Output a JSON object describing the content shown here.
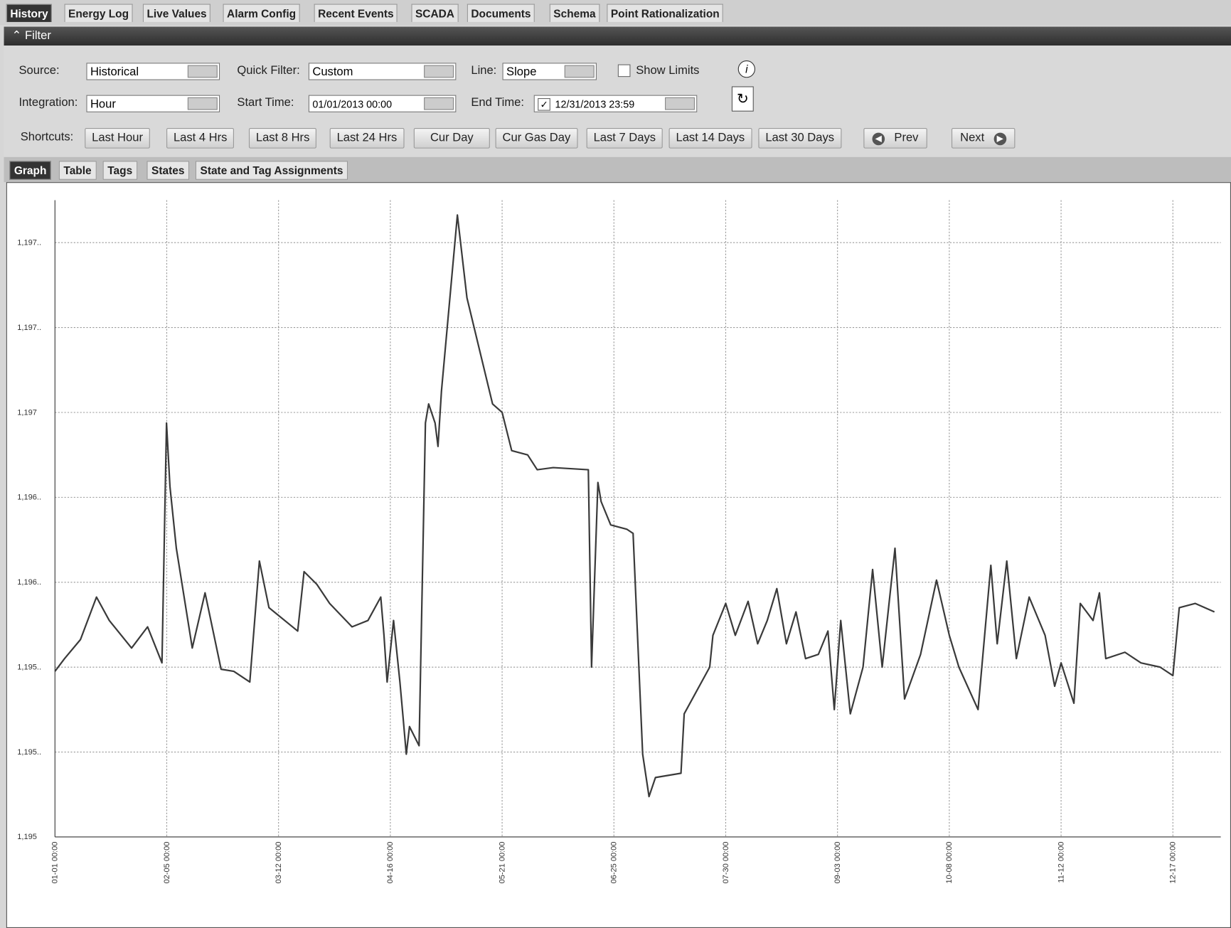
{
  "tabs": [
    "History",
    "Energy Log",
    "Live Values",
    "Alarm Config",
    "Recent Events",
    "SCADA",
    "Documents",
    "Schema",
    "Point Rationalization"
  ],
  "filter": {
    "title": "Filter",
    "source_label": "Source:",
    "source": "Historical",
    "quick_filter_label": "Quick Filter:",
    "quick_filter": "Custom",
    "line_label": "Line:",
    "line": "Slope",
    "show_limits": "Show Limits",
    "integration_label": "Integration:",
    "integration": "Hour",
    "start_time_label": "Start Time:",
    "start_time": "01/01/2013 00:00",
    "end_time_label": "End Time:",
    "end_time": "12/31/2013 23:59",
    "shortcuts_label": "Shortcuts:",
    "shortcuts": [
      "Last Hour",
      "Last 4 Hrs",
      "Last 8 Hrs",
      "Last 24 Hrs",
      "Cur Day",
      "Cur Gas Day",
      "Last 7 Days",
      "Last 14 Days",
      "Last 30 Days"
    ],
    "prev": "Prev",
    "next": "Next"
  },
  "subtabs": [
    "Graph",
    "Table",
    "Tags",
    "States",
    "State and Tag Assignments"
  ],
  "chart_data": {
    "type": "line",
    "color": "#3a3a3a",
    "grid": true,
    "xlim": [
      "01-01 00:00",
      "12-31 23:59"
    ],
    "xticks": [
      "01-01 00:00",
      "02-05 00:00",
      "03-12 00:00",
      "04-16 00:00",
      "05-21 00:00",
      "06-25 00:00",
      "07-30 00:00",
      "09-03 00:00",
      "10-08 00:00",
      "11-12 00:00",
      "12-17 00:00"
    ],
    "ylim": [
      1195,
      1198
    ],
    "yticks": [
      {
        "value": 1195,
        "label": "1,195"
      },
      {
        "value": 1195.4,
        "label": "1,195.."
      },
      {
        "value": 1195.8,
        "label": "1,195.."
      },
      {
        "value": 1196.2,
        "label": "1,196.."
      },
      {
        "value": 1196.6,
        "label": "1,196.."
      },
      {
        "value": 1197,
        "label": "1,197"
      },
      {
        "value": 1197.4,
        "label": "1,197.."
      },
      {
        "value": 1197.8,
        "label": "1,197.."
      }
    ],
    "x": [
      "01-01 00:00",
      "01-04 00:00",
      "01-09 00:00",
      "01-14 00:00",
      "01-18 00:00",
      "01-25 00:00",
      "01-30 00:00",
      "02-03 12:00",
      "02-04 22:00",
      "02-06 00:00",
      "02-08 00:00",
      "02-13 00:00",
      "02-17 00:00",
      "02-22 00:00",
      "02-26 00:00",
      "03-03 00:00",
      "03-06 00:00",
      "03-09 00:00",
      "03-18 00:00",
      "03-20 00:00",
      "03-24 00:00",
      "03-28 00:00",
      "04-04 00:00",
      "04-09 00:00",
      "04-13 00:00",
      "04-14 00:00",
      "04-15 00:00",
      "04-17 00:00",
      "04-19 00:00",
      "04-20 00:00",
      "04-21 00:00",
      "04-22 00:00",
      "04-25 00:00",
      "04-27 00:00",
      "04-28 00:00",
      "04-30 00:00",
      "04-30 22:00",
      "05-02 00:00",
      "05-07 00:00",
      "05-10 00:00",
      "05-18 00:00",
      "05-21 00:00",
      "05-24 00:00",
      "05-29 00:00",
      "06-01 00:00",
      "06-06 00:00",
      "06-17 00:00",
      "06-18 00:00",
      "06-20 00:00",
      "06-21 00:00",
      "06-24 00:00",
      "06-29 00:00",
      "07-01 00:00",
      "07-04 00:00",
      "07-06 00:00",
      "07-08 00:00",
      "07-16 00:00",
      "07-17 00:00",
      "07-25 00:00",
      "07-26 00:00",
      "07-30 00:00",
      "08-02 00:00",
      "08-06 00:00",
      "08-09 00:00",
      "08-12 00:00",
      "08-15 00:00",
      "08-18 00:00",
      "08-21 00:00",
      "08-24 00:00",
      "08-28 00:00",
      "08-31 00:00",
      "09-02 00:00",
      "09-04 00:00",
      "09-07 00:00",
      "09-11 00:00",
      "09-14 00:00",
      "09-17 00:00",
      "09-21 00:00",
      "09-24 00:00",
      "09-29 00:00",
      "10-04 00:00",
      "10-08 00:00",
      "10-11 00:00",
      "10-17 00:00",
      "10-21 00:00",
      "10-23 00:00",
      "10-26 00:00",
      "10-29 00:00",
      "11-02 00:00",
      "11-07 00:00",
      "11-10 00:00",
      "11-12 00:00",
      "11-16 00:00",
      "11-18 00:00",
      "11-22 00:00",
      "11-24 00:00",
      "11-26 00:00",
      "12-02 00:00",
      "12-07 00:00",
      "12-13 00:00",
      "12-17 00:00",
      "12-19 00:00",
      "12-24 00:00",
      "12-30 00:00"
    ],
    "values": [
      1195.78,
      1195.84,
      1195.93,
      1196.13,
      1196.02,
      1195.89,
      1195.99,
      1195.82,
      1196.95,
      1196.65,
      1196.36,
      1195.89,
      1196.15,
      1195.79,
      1195.78,
      1195.73,
      1196.3,
      1196.08,
      1195.97,
      1196.25,
      1196.19,
      1196.1,
      1195.99,
      1196.02,
      1196.13,
      1195.95,
      1195.73,
      1196.02,
      1195.73,
      1195.56,
      1195.39,
      1195.52,
      1195.43,
      1196.95,
      1197.04,
      1196.95,
      1196.84,
      1197.1,
      1197.93,
      1197.54,
      1197.04,
      1197.0,
      1196.82,
      1196.8,
      1196.73,
      1196.74,
      1196.73,
      1195.8,
      1196.67,
      1196.58,
      1196.47,
      1196.45,
      1196.43,
      1195.39,
      1195.19,
      1195.28,
      1195.3,
      1195.58,
      1195.8,
      1195.95,
      1196.1,
      1195.95,
      1196.11,
      1195.91,
      1196.02,
      1196.17,
      1195.91,
      1196.06,
      1195.84,
      1195.86,
      1195.97,
      1195.6,
      1196.02,
      1195.58,
      1195.8,
      1196.26,
      1195.8,
      1196.36,
      1195.65,
      1195.86,
      1196.21,
      1195.95,
      1195.8,
      1195.6,
      1196.28,
      1195.91,
      1196.3,
      1195.84,
      1196.13,
      1195.95,
      1195.71,
      1195.82,
      1195.63,
      1196.1,
      1196.02,
      1196.15,
      1195.84,
      1195.87,
      1195.82,
      1195.8,
      1195.76,
      1196.08,
      1196.1,
      1196.06
    ]
  }
}
